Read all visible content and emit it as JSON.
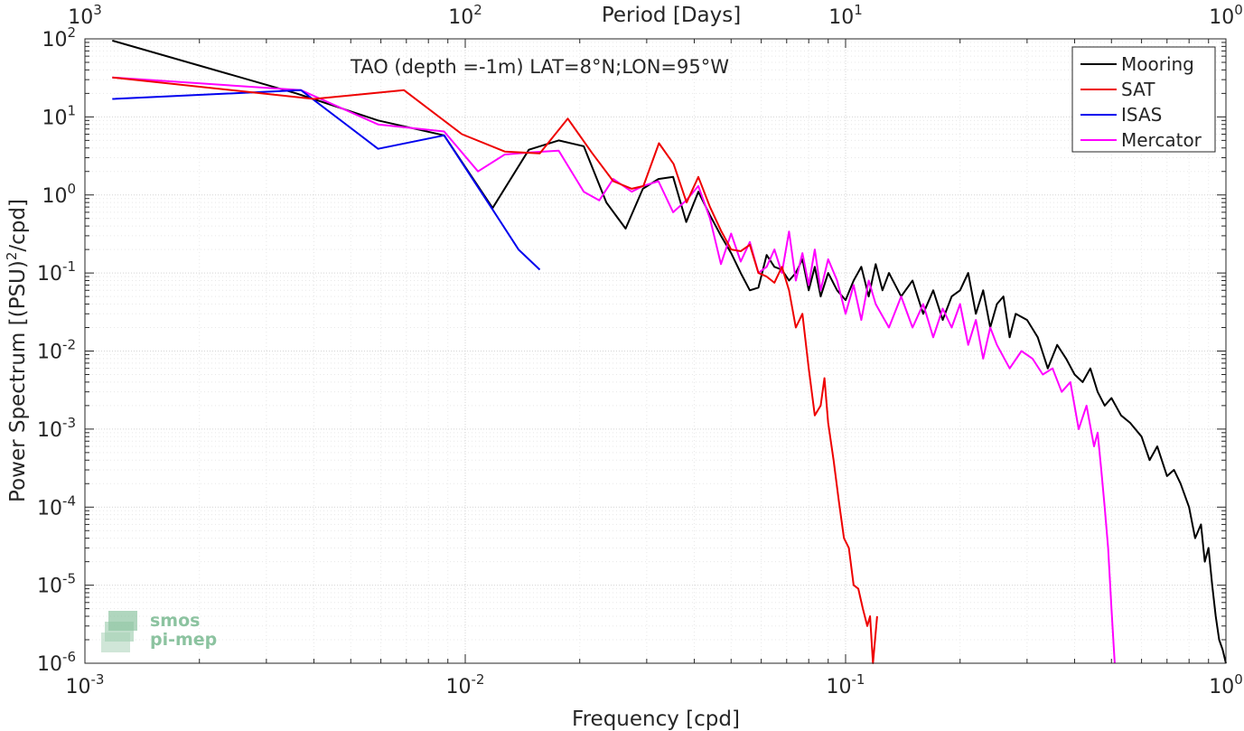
{
  "chart_data": {
    "type": "line",
    "annotation": "TAO (depth =-1m) LAT=8°N;LON=95°W",
    "xlabel": "Frequency [cpd]",
    "x2label": "Period [Days]",
    "ylabel_main": "Power Spectrum [(PSU)",
    "ylabel_sup": "2",
    "ylabel_tail": "/cpd]",
    "x_scale": "log",
    "y_scale": "log",
    "xlim": [
      0.001,
      1
    ],
    "ylim": [
      1e-06,
      100
    ],
    "grid": true,
    "legend_position": "top-right",
    "x_ticks": [
      {
        "value": 0.001,
        "base": "10",
        "exp": "-3"
      },
      {
        "value": 0.01,
        "base": "10",
        "exp": "-2"
      },
      {
        "value": 0.1,
        "base": "10",
        "exp": "-1"
      },
      {
        "value": 1,
        "base": "10",
        "exp": "0"
      }
    ],
    "period_ticks": [
      {
        "value": 1000,
        "base": "10",
        "exp": "3"
      },
      {
        "value": 100,
        "base": "10",
        "exp": "2"
      },
      {
        "value": 10,
        "base": "10",
        "exp": "1"
      },
      {
        "value": 1,
        "base": "10",
        "exp": "0"
      }
    ],
    "y_ticks": [
      {
        "value": 100,
        "base": "10",
        "exp": "2"
      },
      {
        "value": 10,
        "base": "10",
        "exp": "1"
      },
      {
        "value": 1,
        "base": "10",
        "exp": "0"
      },
      {
        "value": 0.1,
        "base": "10",
        "exp": "-1"
      },
      {
        "value": 0.01,
        "base": "10",
        "exp": "-2"
      },
      {
        "value": 0.001,
        "base": "10",
        "exp": "-3"
      },
      {
        "value": 0.0001,
        "base": "10",
        "exp": "-4"
      },
      {
        "value": 1e-05,
        "base": "10",
        "exp": "-5"
      },
      {
        "value": 1e-06,
        "base": "10",
        "exp": "-6"
      }
    ],
    "series": [
      {
        "name": "Mooring",
        "color": "#000000",
        "points": [
          [
            0.00118,
            95
          ],
          [
            0.0036,
            20
          ],
          [
            0.0059,
            9
          ],
          [
            0.0088,
            5.8
          ],
          [
            0.0118,
            0.68
          ],
          [
            0.0147,
            3.8
          ],
          [
            0.0176,
            5
          ],
          [
            0.0205,
            4.2
          ],
          [
            0.0235,
            0.8
          ],
          [
            0.0264,
            0.37
          ],
          [
            0.0293,
            1.2
          ],
          [
            0.0322,
            1.6
          ],
          [
            0.0352,
            1.7
          ],
          [
            0.0381,
            0.45
          ],
          [
            0.041,
            1.1
          ],
          [
            0.044,
            0.55
          ],
          [
            0.047,
            0.3
          ],
          [
            0.05,
            0.18
          ],
          [
            0.053,
            0.1
          ],
          [
            0.056,
            0.06
          ],
          [
            0.059,
            0.065
          ],
          [
            0.062,
            0.17
          ],
          [
            0.065,
            0.12
          ],
          [
            0.068,
            0.11
          ],
          [
            0.071,
            0.08
          ],
          [
            0.074,
            0.1
          ],
          [
            0.077,
            0.15
          ],
          [
            0.08,
            0.06
          ],
          [
            0.083,
            0.12
          ],
          [
            0.086,
            0.05
          ],
          [
            0.09,
            0.1
          ],
          [
            0.095,
            0.06
          ],
          [
            0.1,
            0.045
          ],
          [
            0.105,
            0.08
          ],
          [
            0.11,
            0.12
          ],
          [
            0.115,
            0.05
          ],
          [
            0.12,
            0.13
          ],
          [
            0.125,
            0.06
          ],
          [
            0.13,
            0.1
          ],
          [
            0.14,
            0.05
          ],
          [
            0.15,
            0.08
          ],
          [
            0.16,
            0.03
          ],
          [
            0.17,
            0.06
          ],
          [
            0.18,
            0.025
          ],
          [
            0.19,
            0.05
          ],
          [
            0.2,
            0.06
          ],
          [
            0.21,
            0.1
          ],
          [
            0.22,
            0.03
          ],
          [
            0.23,
            0.06
          ],
          [
            0.24,
            0.02
          ],
          [
            0.25,
            0.04
          ],
          [
            0.26,
            0.05
          ],
          [
            0.27,
            0.015
          ],
          [
            0.28,
            0.03
          ],
          [
            0.3,
            0.025
          ],
          [
            0.32,
            0.015
          ],
          [
            0.34,
            0.006
          ],
          [
            0.36,
            0.012
          ],
          [
            0.38,
            0.008
          ],
          [
            0.4,
            0.005
          ],
          [
            0.42,
            0.004
          ],
          [
            0.44,
            0.006
          ],
          [
            0.46,
            0.003
          ],
          [
            0.48,
            0.002
          ],
          [
            0.5,
            0.0025
          ],
          [
            0.53,
            0.0015
          ],
          [
            0.56,
            0.0012
          ],
          [
            0.6,
            0.0008
          ],
          [
            0.63,
            0.0004
          ],
          [
            0.66,
            0.0006
          ],
          [
            0.7,
            0.00025
          ],
          [
            0.73,
            0.0003
          ],
          [
            0.76,
            0.0002
          ],
          [
            0.8,
            0.0001
          ],
          [
            0.83,
            4e-05
          ],
          [
            0.86,
            6e-05
          ],
          [
            0.88,
            2e-05
          ],
          [
            0.9,
            3e-05
          ],
          [
            0.92,
            1e-05
          ],
          [
            0.94,
            4e-06
          ],
          [
            0.96,
            2e-06
          ],
          [
            0.98,
            1.5e-06
          ],
          [
            1.0,
            1e-06
          ]
        ]
      },
      {
        "name": "SAT",
        "color": "#ee0000",
        "points": [
          [
            0.00118,
            32
          ],
          [
            0.004,
            17
          ],
          [
            0.0069,
            22
          ],
          [
            0.0098,
            6
          ],
          [
            0.0127,
            3.6
          ],
          [
            0.0157,
            3.4
          ],
          [
            0.0186,
            9.5
          ],
          [
            0.0215,
            3.5
          ],
          [
            0.0245,
            1.5
          ],
          [
            0.0274,
            1.2
          ],
          [
            0.0294,
            1.3
          ],
          [
            0.0323,
            4.6
          ],
          [
            0.0353,
            2.5
          ],
          [
            0.0382,
            0.8
          ],
          [
            0.041,
            1.7
          ],
          [
            0.044,
            0.7
          ],
          [
            0.047,
            0.35
          ],
          [
            0.05,
            0.2
          ],
          [
            0.053,
            0.19
          ],
          [
            0.056,
            0.23
          ],
          [
            0.059,
            0.1
          ],
          [
            0.062,
            0.09
          ],
          [
            0.065,
            0.075
          ],
          [
            0.068,
            0.12
          ],
          [
            0.071,
            0.06
          ],
          [
            0.074,
            0.02
          ],
          [
            0.077,
            0.03
          ],
          [
            0.08,
            0.006
          ],
          [
            0.083,
            0.0015
          ],
          [
            0.086,
            0.002
          ],
          [
            0.088,
            0.0045
          ],
          [
            0.09,
            0.0012
          ],
          [
            0.093,
            0.0004
          ],
          [
            0.096,
            0.00012
          ],
          [
            0.099,
            4e-05
          ],
          [
            0.102,
            3e-05
          ],
          [
            0.105,
            1e-05
          ],
          [
            0.108,
            9e-06
          ],
          [
            0.111,
            5e-06
          ],
          [
            0.114,
            3e-06
          ],
          [
            0.116,
            4e-06
          ],
          [
            0.118,
            1e-06
          ],
          [
            0.121,
            4e-06
          ]
        ]
      },
      {
        "name": "ISAS",
        "color": "#0000ee",
        "points": [
          [
            0.00118,
            17
          ],
          [
            0.0037,
            22
          ],
          [
            0.0059,
            3.9
          ],
          [
            0.0088,
            5.8
          ],
          [
            0.0118,
            0.65
          ],
          [
            0.0138,
            0.2
          ],
          [
            0.0157,
            0.11
          ]
        ]
      },
      {
        "name": "Mercator",
        "color": "#ff00ff",
        "points": [
          [
            0.00118,
            32
          ],
          [
            0.0037,
            22
          ],
          [
            0.0059,
            8
          ],
          [
            0.0088,
            6.5
          ],
          [
            0.0108,
            2
          ],
          [
            0.0127,
            3.3
          ],
          [
            0.0147,
            3.5
          ],
          [
            0.0176,
            3.7
          ],
          [
            0.0205,
            1.1
          ],
          [
            0.0225,
            0.85
          ],
          [
            0.0245,
            1.6
          ],
          [
            0.0274,
            1.1
          ],
          [
            0.0293,
            1.3
          ],
          [
            0.0322,
            1.5
          ],
          [
            0.0352,
            0.6
          ],
          [
            0.0381,
            0.85
          ],
          [
            0.041,
            1.3
          ],
          [
            0.044,
            0.5
          ],
          [
            0.047,
            0.13
          ],
          [
            0.05,
            0.32
          ],
          [
            0.053,
            0.14
          ],
          [
            0.056,
            0.25
          ],
          [
            0.059,
            0.1
          ],
          [
            0.062,
            0.12
          ],
          [
            0.065,
            0.2
          ],
          [
            0.068,
            0.1
          ],
          [
            0.071,
            0.34
          ],
          [
            0.074,
            0.08
          ],
          [
            0.077,
            0.18
          ],
          [
            0.08,
            0.07
          ],
          [
            0.083,
            0.2
          ],
          [
            0.086,
            0.06
          ],
          [
            0.09,
            0.15
          ],
          [
            0.095,
            0.08
          ],
          [
            0.1,
            0.03
          ],
          [
            0.105,
            0.07
          ],
          [
            0.11,
            0.025
          ],
          [
            0.115,
            0.08
          ],
          [
            0.12,
            0.04
          ],
          [
            0.13,
            0.02
          ],
          [
            0.14,
            0.05
          ],
          [
            0.15,
            0.02
          ],
          [
            0.16,
            0.04
          ],
          [
            0.17,
            0.015
          ],
          [
            0.18,
            0.035
          ],
          [
            0.19,
            0.02
          ],
          [
            0.2,
            0.04
          ],
          [
            0.21,
            0.012
          ],
          [
            0.22,
            0.025
          ],
          [
            0.23,
            0.008
          ],
          [
            0.24,
            0.02
          ],
          [
            0.25,
            0.012
          ],
          [
            0.27,
            0.006
          ],
          [
            0.29,
            0.01
          ],
          [
            0.31,
            0.008
          ],
          [
            0.33,
            0.005
          ],
          [
            0.35,
            0.006
          ],
          [
            0.37,
            0.003
          ],
          [
            0.39,
            0.004
          ],
          [
            0.41,
            0.001
          ],
          [
            0.43,
            0.002
          ],
          [
            0.45,
            0.0006
          ],
          [
            0.46,
            0.0009
          ],
          [
            0.47,
            0.0003
          ],
          [
            0.48,
            0.0001
          ],
          [
            0.49,
            3e-05
          ],
          [
            0.5,
            5e-06
          ],
          [
            0.51,
            1e-06
          ]
        ]
      }
    ]
  },
  "watermark": {
    "line1": "smos",
    "line2": "pi-mep"
  }
}
